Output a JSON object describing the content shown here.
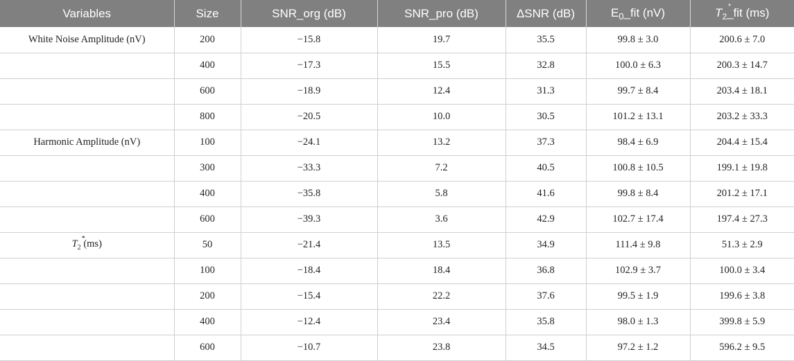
{
  "headers": {
    "variables": "Variables",
    "size": "Size",
    "snr_org": "SNR_org (dB)",
    "snr_pro": "SNR_pro (dB)",
    "delta_snr": "ΔSNR (dB)",
    "e0_prefix": "E",
    "e0_sub": "0",
    "e0_suffix": "_fit (nV)",
    "t2_letter": "T",
    "t2_sub": "2",
    "t2_sup": "*",
    "t2_suffix": "_fit (ms)"
  },
  "groups": {
    "white_noise": "White Noise Amplitude (nV)",
    "harmonic": "Harmonic Amplitude (nV)",
    "t2_letter": "T",
    "t2_sub": "2",
    "t2_sup": "*",
    "t2_suffix": " (ms)"
  },
  "rows": [
    {
      "size": "200",
      "snr_org": "−15.8",
      "snr_pro": "19.7",
      "delta": "35.5",
      "e0": "99.8 ± 3.0",
      "t2": "200.6 ± 7.0"
    },
    {
      "size": "400",
      "snr_org": "−17.3",
      "snr_pro": "15.5",
      "delta": "32.8",
      "e0": "100.0 ± 6.3",
      "t2": "200.3 ± 14.7"
    },
    {
      "size": "600",
      "snr_org": "−18.9",
      "snr_pro": "12.4",
      "delta": "31.3",
      "e0": "99.7 ± 8.4",
      "t2": "203.4 ± 18.1"
    },
    {
      "size": "800",
      "snr_org": "−20.5",
      "snr_pro": "10.0",
      "delta": "30.5",
      "e0": "101.2 ± 13.1",
      "t2": "203.2 ± 33.3"
    },
    {
      "size": "100",
      "snr_org": "−24.1",
      "snr_pro": "13.2",
      "delta": "37.3",
      "e0": "98.4 ± 6.9",
      "t2": "204.4 ± 15.4"
    },
    {
      "size": "300",
      "snr_org": "−33.3",
      "snr_pro": "7.2",
      "delta": "40.5",
      "e0": "100.8 ± 10.5",
      "t2": "199.1 ± 19.8"
    },
    {
      "size": "400",
      "snr_org": "−35.8",
      "snr_pro": "5.8",
      "delta": "41.6",
      "e0": "99.8 ± 8.4",
      "t2": "201.2 ± 17.1"
    },
    {
      "size": "600",
      "snr_org": "−39.3",
      "snr_pro": "3.6",
      "delta": "42.9",
      "e0": "102.7 ± 17.4",
      "t2": "197.4 ± 27.3"
    },
    {
      "size": "50",
      "snr_org": "−21.4",
      "snr_pro": "13.5",
      "delta": "34.9",
      "e0": "111.4 ± 9.8",
      "t2": "51.3 ± 2.9"
    },
    {
      "size": "100",
      "snr_org": "−18.4",
      "snr_pro": "18.4",
      "delta": "36.8",
      "e0": "102.9 ± 3.7",
      "t2": "100.0 ± 3.4"
    },
    {
      "size": "200",
      "snr_org": "−15.4",
      "snr_pro": "22.2",
      "delta": "37.6",
      "e0": "99.5 ± 1.9",
      "t2": "199.6 ± 3.8"
    },
    {
      "size": "400",
      "snr_org": "−12.4",
      "snr_pro": "23.4",
      "delta": "35.8",
      "e0": "98.0 ± 1.3",
      "t2": "399.8 ± 5.9"
    },
    {
      "size": "600",
      "snr_org": "−10.7",
      "snr_pro": "23.8",
      "delta": "34.5",
      "e0": "97.2 ± 1.2",
      "t2": "596.2 ± 9.5"
    }
  ]
}
